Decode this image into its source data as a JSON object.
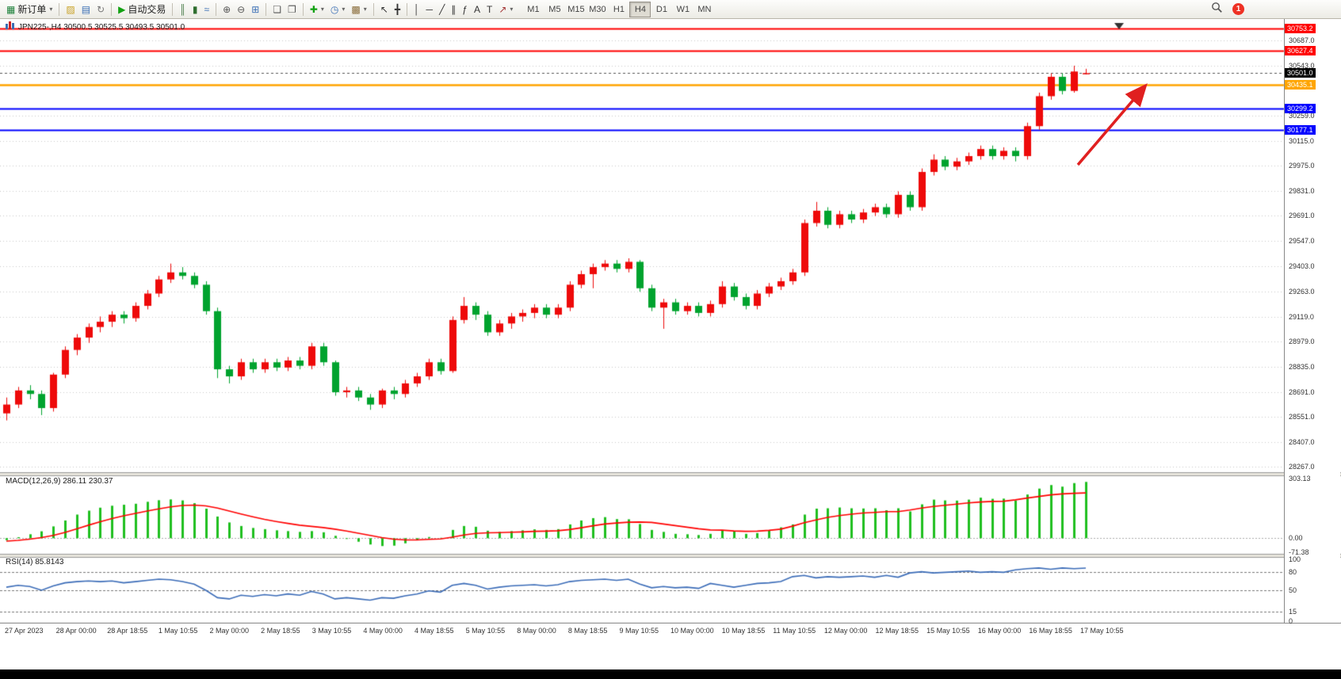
{
  "window": {
    "bottom_bar_color": "#000000"
  },
  "toolbar": {
    "buttons": [
      {
        "name": "new-order-button",
        "glyph": "▦",
        "glyph_color": "#1a7f37",
        "label": "新订单",
        "dropdown": true
      },
      {
        "sep": true
      },
      {
        "name": "new-chart-button",
        "glyph": "▨",
        "glyph_color": "#c9a227"
      },
      {
        "name": "profiles-button",
        "glyph": "▤",
        "glyph_color": "#3b6fb5"
      },
      {
        "name": "refresh-button",
        "glyph": "↻",
        "glyph_color": "#777777"
      },
      {
        "sep": true
      },
      {
        "name": "autotrading-button",
        "glyph": "▶",
        "glyph_color": "#12a112",
        "label": "自动交易"
      },
      {
        "sep": true
      },
      {
        "name": "bar-chart-button",
        "glyph": "║",
        "glyph_color": "#4a7d4a"
      },
      {
        "name": "candle-chart-button",
        "glyph": "▮",
        "glyph_color": "#2f6e2f"
      },
      {
        "name": "line-chart-button",
        "glyph": "≈",
        "glyph_color": "#3b6fb5"
      },
      {
        "sep": true
      },
      {
        "name": "zoom-in-button",
        "glyph": "⊕",
        "glyph_color": "#555555"
      },
      {
        "name": "zoom-out-button",
        "glyph": "⊖",
        "glyph_color": "#555555"
      },
      {
        "name": "tile-windows-button",
        "glyph": "⊞",
        "glyph_color": "#3b6fb5"
      },
      {
        "sep": true
      },
      {
        "name": "arrange-windows-button",
        "glyph": "❏",
        "glyph_color": "#555555"
      },
      {
        "name": "chart-shift-button",
        "glyph": "❐",
        "glyph_color": "#555555"
      },
      {
        "sep": true
      },
      {
        "name": "indicators-button",
        "glyph": "✚",
        "glyph_color": "#12a112",
        "dropdown": true
      },
      {
        "name": "periods-button",
        "glyph": "◷",
        "glyph_color": "#3b6fb5",
        "dropdown": true
      },
      {
        "name": "templates-button",
        "glyph": "▩",
        "glyph_color": "#8a6d3b",
        "dropdown": true
      },
      {
        "sep": true
      },
      {
        "name": "cursor-button",
        "glyph": "↖",
        "glyph_color": "#333333"
      },
      {
        "name": "crosshair-button",
        "glyph": "╋",
        "glyph_color": "#333333"
      },
      {
        "sep": true
      },
      {
        "name": "vertical-line-button",
        "glyph": "│",
        "glyph_color": "#333333"
      },
      {
        "name": "horizontal-line-button",
        "glyph": "─",
        "glyph_color": "#333333"
      },
      {
        "name": "trendline-button",
        "glyph": "╱",
        "glyph_color": "#333333"
      },
      {
        "name": "channel-button",
        "glyph": "∥",
        "glyph_color": "#333333"
      },
      {
        "name": "fibonacci-button",
        "glyph": "ƒ",
        "glyph_color": "#333333"
      },
      {
        "name": "text-button",
        "glyph": "A",
        "glyph_color": "#333333"
      },
      {
        "name": "label-button",
        "glyph": "T",
        "glyph_color": "#333333"
      },
      {
        "name": "arrows-button",
        "glyph": "↗",
        "glyph_color": "#a33333",
        "dropdown": true
      }
    ],
    "timeframes": [
      "M1",
      "M5",
      "M15",
      "M30",
      "H1",
      "H4",
      "D1",
      "W1",
      "MN"
    ],
    "active_timeframe": "H4",
    "notification_badge": "1"
  },
  "chart_data": {
    "type": "candlestick",
    "symbol": "JPN225-",
    "timeframe": "H4",
    "title_line": "JPN225-,H4  30500.5 30525.5 30493.5 30501.0",
    "colors": {
      "up": "#ee0a0a",
      "down": "#00a32e",
      "grid": "#c9c9c9",
      "current_line": "#555555"
    },
    "price_axis": {
      "min": 28245,
      "max": 30790,
      "ticks": [
        30687.0,
        30543.0,
        30259.0,
        30115.0,
        29975.0,
        29831.0,
        29691.0,
        29547.0,
        29403.0,
        29263.0,
        29119.0,
        28979.0,
        28835.0,
        28691.0,
        28551.0,
        28407.0,
        28267.0
      ]
    },
    "hlines": [
      {
        "price": 30753.2,
        "label": "30753.2",
        "color": "#ff0000",
        "lw": 2
      },
      {
        "price": 30627.4,
        "label": "30627.4",
        "color": "#ff0000",
        "lw": 2
      },
      {
        "price": 30435.1,
        "label": "30435.1",
        "color": "#ffa500",
        "lw": 2.5
      },
      {
        "price": 30299.2,
        "label": "30299.2",
        "color": "#0000ff",
        "lw": 2
      },
      {
        "price": 30177.1,
        "label": "30177.1",
        "color": "#0000ff",
        "lw": 2
      }
    ],
    "current_price": {
      "price": 30501.0,
      "label": "30501.0",
      "color": "#000000"
    },
    "candles": [
      [
        28570,
        28660,
        28530,
        28620
      ],
      [
        28620,
        28720,
        28600,
        28700
      ],
      [
        28700,
        28730,
        28650,
        28680
      ],
      [
        28680,
        28700,
        28560,
        28600
      ],
      [
        28600,
        28800,
        28580,
        28790
      ],
      [
        28790,
        28950,
        28770,
        28930
      ],
      [
        28930,
        29020,
        28900,
        29000
      ],
      [
        29000,
        29080,
        28970,
        29060
      ],
      [
        29060,
        29120,
        29030,
        29090
      ],
      [
        29090,
        29150,
        29060,
        29130
      ],
      [
        29130,
        29150,
        29080,
        29110
      ],
      [
        29110,
        29200,
        29090,
        29180
      ],
      [
        29180,
        29270,
        29160,
        29250
      ],
      [
        29250,
        29350,
        29230,
        29330
      ],
      [
        29330,
        29420,
        29310,
        29370
      ],
      [
        29370,
        29400,
        29330,
        29350
      ],
      [
        29350,
        29370,
        29280,
        29300
      ],
      [
        29300,
        29320,
        29130,
        29150
      ],
      [
        29150,
        29170,
        28770,
        28820
      ],
      [
        28820,
        28840,
        28740,
        28780
      ],
      [
        28780,
        28880,
        28760,
        28860
      ],
      [
        28860,
        28880,
        28800,
        28820
      ],
      [
        28820,
        28880,
        28800,
        28860
      ],
      [
        28860,
        28880,
        28810,
        28830
      ],
      [
        28830,
        28890,
        28810,
        28870
      ],
      [
        28870,
        28890,
        28820,
        28840
      ],
      [
        28840,
        28970,
        28820,
        28950
      ],
      [
        28950,
        28970,
        28840,
        28860
      ],
      [
        28860,
        28870,
        28670,
        28690
      ],
      [
        28690,
        28720,
        28660,
        28700
      ],
      [
        28700,
        28720,
        28640,
        28660
      ],
      [
        28660,
        28680,
        28590,
        28620
      ],
      [
        28620,
        28710,
        28600,
        28700
      ],
      [
        28700,
        28720,
        28650,
        28680
      ],
      [
        28680,
        28760,
        28660,
        28740
      ],
      [
        28740,
        28800,
        28720,
        28780
      ],
      [
        28780,
        28880,
        28760,
        28860
      ],
      [
        28860,
        28880,
        28790,
        28810
      ],
      [
        28810,
        29120,
        28800,
        29100
      ],
      [
        29100,
        29230,
        29080,
        29180
      ],
      [
        29180,
        29200,
        29100,
        29130
      ],
      [
        29130,
        29150,
        29010,
        29030
      ],
      [
        29030,
        29100,
        29010,
        29080
      ],
      [
        29080,
        29140,
        29050,
        29120
      ],
      [
        29120,
        29160,
        29090,
        29140
      ],
      [
        29140,
        29190,
        29110,
        29170
      ],
      [
        29170,
        29190,
        29110,
        29130
      ],
      [
        29130,
        29190,
        29110,
        29170
      ],
      [
        29170,
        29320,
        29150,
        29300
      ],
      [
        29300,
        29380,
        29280,
        29360
      ],
      [
        29360,
        29420,
        29280,
        29400
      ],
      [
        29400,
        29440,
        29380,
        29420
      ],
      [
        29420,
        29440,
        29370,
        29390
      ],
      [
        29390,
        29450,
        29370,
        29430
      ],
      [
        29430,
        29440,
        29260,
        29280
      ],
      [
        29280,
        29300,
        29150,
        29170
      ],
      [
        29170,
        29220,
        29050,
        29200
      ],
      [
        29200,
        29220,
        29130,
        29150
      ],
      [
        29150,
        29200,
        29130,
        29180
      ],
      [
        29180,
        29200,
        29120,
        29140
      ],
      [
        29140,
        29210,
        29120,
        29190
      ],
      [
        29190,
        29320,
        29170,
        29290
      ],
      [
        29290,
        29310,
        29210,
        29230
      ],
      [
        29230,
        29250,
        29160,
        29180
      ],
      [
        29180,
        29270,
        29160,
        29250
      ],
      [
        29250,
        29310,
        29230,
        29290
      ],
      [
        29290,
        29340,
        29270,
        29320
      ],
      [
        29320,
        29390,
        29300,
        29370
      ],
      [
        29370,
        29670,
        29350,
        29650
      ],
      [
        29650,
        29770,
        29630,
        29720
      ],
      [
        29720,
        29740,
        29620,
        29640
      ],
      [
        29640,
        29720,
        29620,
        29700
      ],
      [
        29700,
        29720,
        29650,
        29670
      ],
      [
        29670,
        29730,
        29650,
        29710
      ],
      [
        29710,
        29760,
        29690,
        29740
      ],
      [
        29740,
        29760,
        29680,
        29700
      ],
      [
        29700,
        29830,
        29680,
        29810
      ],
      [
        29810,
        29830,
        29720,
        29740
      ],
      [
        29740,
        29960,
        29720,
        29940
      ],
      [
        29940,
        30040,
        29920,
        30010
      ],
      [
        30010,
        30030,
        29950,
        29970
      ],
      [
        29970,
        30020,
        29950,
        30000
      ],
      [
        30000,
        30050,
        29980,
        30030
      ],
      [
        30030,
        30090,
        30010,
        30070
      ],
      [
        30070,
        30090,
        30010,
        30030
      ],
      [
        30030,
        30080,
        30010,
        30060
      ],
      [
        30060,
        30080,
        30000,
        30030
      ],
      [
        30030,
        30220,
        30010,
        30200
      ],
      [
        30200,
        30390,
        30180,
        30370
      ],
      [
        30370,
        30500,
        30350,
        30480
      ],
      [
        30480,
        30500,
        30380,
        30400
      ],
      [
        30400,
        30543,
        30390,
        30510
      ],
      [
        30500.5,
        30525.5,
        30493.5,
        30501.0
      ]
    ],
    "macd": {
      "label": "MACD(12,26,9) 286.11 230.37",
      "value": 286.11,
      "signal_value": 230.37,
      "max": 303.13,
      "min": -71.38,
      "axis": [
        {
          "v": 303.13,
          "label": "303.13"
        },
        {
          "v": 0,
          "label": "0.00"
        },
        {
          "v": -71.38,
          "label": "-71.38"
        }
      ],
      "hist_color": "#1fbf1f",
      "signal_color": "#ff0000",
      "hist": [
        -10,
        5,
        20,
        35,
        60,
        90,
        120,
        140,
        155,
        165,
        170,
        175,
        185,
        193,
        197,
        192,
        178,
        150,
        110,
        80,
        62,
        52,
        46,
        40,
        36,
        32,
        36,
        30,
        12,
        -4,
        -18,
        -32,
        -40,
        -38,
        -26,
        -10,
        6,
        2,
        42,
        62,
        58,
        38,
        32,
        36,
        40,
        45,
        42,
        46,
        70,
        90,
        102,
        107,
        97,
        96,
        72,
        42,
        32,
        22,
        20,
        16,
        22,
        42,
        36,
        22,
        26,
        40,
        55,
        70,
        120,
        150,
        152,
        156,
        152,
        151,
        152,
        142,
        152,
        136,
        172,
        196,
        192,
        191,
        196,
        206,
        200,
        201,
        191,
        222,
        252,
        270,
        262,
        280,
        286
      ],
      "signal": [
        -15,
        -11,
        -5,
        3,
        14,
        29,
        47,
        66,
        84,
        100,
        114,
        126,
        138,
        149,
        159,
        166,
        168,
        164,
        153,
        138,
        123,
        109,
        96,
        85,
        75,
        66,
        60,
        54,
        46,
        36,
        25,
        14,
        3,
        -5,
        -9,
        -9,
        -6,
        -4,
        5,
        16,
        24,
        27,
        28,
        30,
        32,
        35,
        36,
        38,
        44,
        53,
        63,
        72,
        77,
        81,
        82,
        80,
        72,
        64,
        56,
        48,
        42,
        41,
        37,
        35,
        36,
        40,
        46,
        61,
        79,
        93,
        106,
        115,
        122,
        128,
        131,
        135,
        135,
        143,
        153,
        161,
        167,
        173,
        179,
        184,
        187,
        188,
        195,
        204,
        212,
        220,
        225,
        228,
        230
      ]
    },
    "rsi": {
      "label": "RSI(14) 85.8143",
      "value": 85.8143,
      "levels": [
        100,
        80,
        50,
        15,
        0
      ],
      "dashed_levels": [
        80,
        50,
        15
      ],
      "line_color": "#3b6cb8",
      "values": [
        55,
        58,
        56,
        50,
        57,
        62,
        64,
        65,
        64,
        65,
        62,
        64,
        66,
        68,
        67,
        64,
        60,
        50,
        38,
        36,
        42,
        40,
        43,
        41,
        44,
        42,
        48,
        44,
        36,
        38,
        36,
        34,
        38,
        37,
        41,
        44,
        49,
        47,
        58,
        61,
        58,
        52,
        55,
        57,
        58,
        59,
        57,
        59,
        64,
        66,
        67,
        68,
        66,
        68,
        60,
        54,
        56,
        54,
        55,
        53,
        61,
        58,
        55,
        58,
        61,
        62,
        64,
        72,
        74,
        70,
        72,
        71,
        72,
        73,
        71,
        74,
        71,
        78,
        80,
        78,
        79,
        80,
        81,
        79,
        80,
        79,
        83,
        85,
        86,
        84,
        86,
        85,
        85.81
      ]
    },
    "time_axis": [
      "27 Apr 2023",
      "28 Apr 00:00",
      "28 Apr 18:55",
      "1 May 10:55",
      "2 May 00:00",
      "2 May 18:55",
      "3 May 10:55",
      "4 May 00:00",
      "4 May 18:55",
      "5 May 10:55",
      "8 May 00:00",
      "8 May 18:55",
      "9 May 10:55",
      "10 May 00:00",
      "10 May 18:55",
      "11 May 10:55",
      "12 May 00:00",
      "12 May 18:55",
      "15 May 10:55",
      "16 May 00:00",
      "16 May 18:55",
      "17 May 10:55"
    ],
    "annotation_arrow": {
      "color": "#e02020"
    }
  }
}
